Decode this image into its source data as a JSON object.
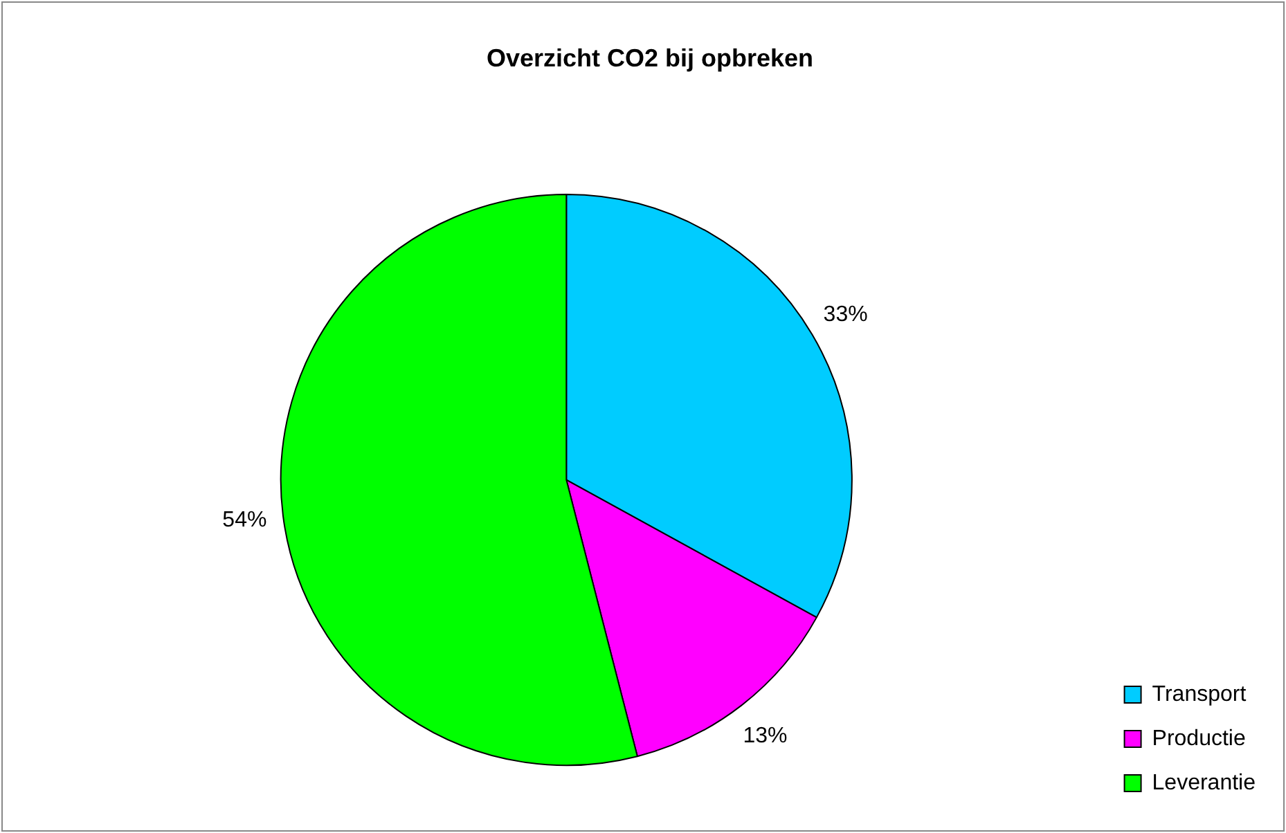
{
  "chart_data": {
    "type": "pie",
    "title": "Overzicht CO2 bij opbreken",
    "categories": [
      "Transport",
      "Productie",
      "Leverantie"
    ],
    "values": [
      33,
      13,
      54
    ],
    "colors": [
      "#00ccff",
      "#ff00ff",
      "#00ff00"
    ],
    "value_labels": [
      "33%",
      "13%",
      "54%"
    ],
    "legend": "bottom right"
  }
}
